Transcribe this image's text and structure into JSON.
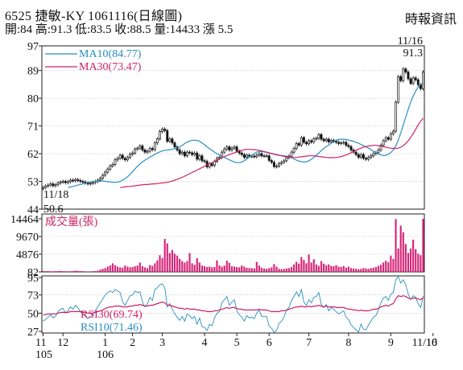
{
  "header": {
    "title": "6525  捷敏-KY 1061116(日線圖)",
    "ohlc": "開:84 高:91.3 低:83.5 收:88.5 量:14433 漲 5.5",
    "source": "時報資訊"
  },
  "chart_data": [
    {
      "type": "candlestick",
      "panel": "price",
      "ylim": [
        44,
        97
      ],
      "yticks": [
        "97",
        "89",
        "80",
        "71",
        "62",
        "53",
        "44"
      ],
      "ytick_values": [
        97,
        89,
        80,
        71,
        62,
        53,
        44
      ],
      "legend": [
        {
          "name": "MA10(84.77)",
          "color": "#2a8fc0"
        },
        {
          "name": "MA30(73.47)",
          "color": "#cc2266"
        }
      ],
      "annotations": {
        "high": {
          "date": "11/16",
          "value": "91.3"
        },
        "low": {
          "date": "11/18",
          "value": "50.6"
        }
      },
      "close_series": [
        51,
        51.5,
        51.8,
        52.2,
        51.6,
        51.9,
        52.5,
        52.8,
        53,
        52.6,
        52.9,
        53.4,
        53.2,
        53.6,
        53.3,
        53,
        52.8,
        52.5,
        52.2,
        52.4,
        52.6,
        53,
        53.4,
        54,
        55,
        56,
        57,
        58,
        58.5,
        60,
        60.5,
        61.5,
        60.5,
        60,
        60.8,
        61.8,
        62.2,
        63.5,
        63.8,
        64.5,
        63.2,
        62.5,
        62.8,
        63.7,
        63.3,
        65.5,
        66.8,
        69.2,
        70,
        69.5,
        66,
        66.8,
        65.5,
        64.2,
        63.2,
        62,
        62.5,
        61.3,
        62.5,
        62.3,
        61.7,
        62.2,
        60.2,
        61.3,
        59.7,
        59.5,
        57.7,
        58.7,
        58.2,
        59.5,
        60.5,
        60.8,
        62.5,
        63.5,
        64.2,
        63.2,
        63.8,
        64.2,
        62.8,
        62.2,
        61.7,
        60.8,
        61.5,
        61.2,
        61.2,
        61,
        61.5,
        62,
        61.3,
        61.3,
        61.3,
        59.8,
        59.2,
        57.8,
        58,
        58.8,
        59.2,
        59.7,
        60.7,
        61.2,
        62.5,
        63.7,
        65.3,
        64.8,
        67.2,
        65.7,
        65.2,
        66.2,
        65.8,
        66.8,
        67,
        68.2,
        66.7,
        66.2,
        66.7,
        65.8,
        66.3,
        66,
        65.7,
        65.3,
        65.5,
        65.7,
        64.7,
        64.3,
        63.2,
        62.5,
        61.7,
        60.8,
        61.7,
        60.5,
        60.2,
        60.8,
        61.3,
        62,
        62.3,
        63.2,
        64.7,
        66.2,
        67.2,
        66.7,
        68.5,
        69.3,
        78.7,
        87,
        85.7,
        89.5,
        88.5,
        86.3,
        84.8,
        86.6,
        86,
        84.4,
        83.1,
        88.5
      ],
      "ma10_series": [
        51,
        51.2,
        51.4,
        51.6,
        51.8,
        52,
        52.2,
        52.4,
        52.6,
        52.8,
        52.9,
        53,
        53,
        53.1,
        53.1,
        53,
        52.9,
        52.8,
        52.7,
        52.7,
        52.8,
        53,
        53.4,
        53.9,
        54.5,
        55.3,
        56.1,
        57.1,
        57.9,
        58.7,
        59.3,
        59.9,
        60.4,
        60.9,
        61.3,
        61.8,
        62.2,
        62.6,
        62.9,
        63.1,
        63.2,
        63.3,
        63.4,
        63.6,
        63.8,
        64.2,
        64.7,
        65.3,
        65.8,
        66.1,
        66.3,
        66.4,
        66.3,
        66,
        65.5,
        64.9,
        64.2,
        63.6,
        63.1,
        62.5,
        62,
        61.6,
        61.2,
        60.8,
        60.4,
        60,
        59.6,
        59.3,
        59.1,
        59.1,
        59.3,
        59.7,
        60.3,
        60.9,
        61.5,
        62,
        62.5,
        62.7,
        62.7,
        62.6,
        62.4,
        62.2,
        62,
        61.8,
        61.6,
        61.5,
        61.4,
        61.3,
        61.2,
        61,
        60.7,
        60.3,
        59.9,
        59.6,
        59.4,
        59.3,
        59.4,
        59.7,
        60.2,
        60.8,
        61.5,
        62.2,
        63,
        63.7,
        64.3,
        64.8,
        65.4,
        65.9,
        66.3,
        66.6,
        66.7,
        66.7,
        66.6,
        66.4,
        66.2,
        66,
        65.7,
        65.4,
        65,
        64.6,
        64.2,
        63.8,
        63.3,
        62.8,
        62.3,
        61.9,
        61.6,
        61.4,
        61.5,
        61.8,
        62.4,
        63.2,
        64.5,
        66.4,
        68.7,
        71.3,
        73.9,
        76.4,
        78.7,
        80.7,
        82.3,
        83.6,
        84.5,
        84.77
      ],
      "ma30_series": [
        51,
        51.1,
        51.2,
        51.3,
        51.4,
        51.5,
        51.6,
        51.7,
        51.8,
        51.9,
        52,
        52,
        52.1,
        52.2,
        52.2,
        52.3,
        52.4,
        52.5,
        52.6,
        52.7,
        52.9,
        53.1,
        53.4,
        53.7,
        54,
        54.3,
        54.7,
        55.1,
        55.5,
        55.9,
        56.3,
        56.7,
        57.1,
        57.5,
        57.9,
        58.3,
        58.7,
        59.1,
        59.5,
        59.9,
        60.3,
        60.7,
        61.1,
        61.4,
        61.7,
        62,
        62.3,
        62.6,
        62.9,
        63.1,
        63.3,
        63.4,
        63.4,
        63.4,
        63.3,
        63.2,
        63.1,
        62.9,
        62.7,
        62.5,
        62.3,
        62.1,
        61.9,
        61.7,
        61.5,
        61.3,
        61.1,
        61,
        60.9,
        60.8,
        60.8,
        60.8,
        60.9,
        61,
        61.1,
        61.2,
        61.3,
        61.3,
        61.3,
        61.2,
        61.1,
        61,
        60.9,
        60.8,
        60.7,
        60.7,
        60.7,
        60.8,
        60.9,
        61.1,
        61.3,
        61.6,
        61.9,
        62.3,
        62.7,
        63.1,
        63.5,
        63.8,
        64.1,
        64.3,
        64.5,
        64.6,
        64.7,
        64.7,
        64.6,
        64.5,
        64.3,
        64.1,
        63.9,
        63.8,
        63.7,
        63.7,
        63.8,
        64.1,
        64.6,
        65.3,
        66.2,
        67.3,
        68.5,
        69.9,
        71.3,
        72.5,
        73.47
      ]
    },
    {
      "type": "bar",
      "panel": "volume",
      "label": "成交量(張)",
      "ylim": [
        82,
        14464
      ],
      "yticks": [
        "14464",
        "9670",
        "4876",
        "82"
      ],
      "ytick_values": [
        14464,
        9670,
        4876,
        82
      ],
      "volume_series": [
        320,
        280,
        300,
        260,
        250,
        280,
        300,
        350,
        280,
        260,
        240,
        260,
        300,
        420,
        380,
        300,
        260,
        240,
        220,
        240,
        260,
        300,
        420,
        700,
        900,
        1100,
        1500,
        1800,
        2400,
        1900,
        1500,
        1300,
        1200,
        1800,
        1500,
        1300,
        1400,
        1600,
        1800,
        2600,
        1600,
        1300,
        1100,
        1900,
        1700,
        2400,
        3200,
        4600,
        3800,
        9000,
        7800,
        5200,
        6000,
        5000,
        4500,
        3600,
        3000,
        2600,
        3000,
        5200,
        2400,
        2000,
        3800,
        2600,
        1800,
        1600,
        1400,
        1500,
        1300,
        1400,
        3200,
        1800,
        1500,
        1800,
        3100,
        2500,
        1600,
        1500,
        1400,
        1300,
        1800,
        1500,
        1200,
        1100,
        1100,
        1000,
        2800,
        1800,
        1200,
        1000,
        900,
        1100,
        1300,
        2200,
        1500,
        900,
        800,
        900,
        1000,
        1100,
        1400,
        2100,
        2800,
        2300,
        4100,
        3300,
        2400,
        4800,
        2600,
        3500,
        2100,
        1700,
        3000,
        2300,
        1900,
        2100,
        1700,
        1600,
        1900,
        1500,
        1400,
        1700,
        1200,
        1500,
        1100,
        1000,
        900,
        800,
        900,
        1100,
        1000,
        900,
        1100,
        1200,
        1400,
        1700,
        2000,
        2600,
        3100,
        2700,
        4500,
        3600,
        14400,
        6400,
        12600,
        10800,
        7600,
        5200,
        6400,
        8800,
        6200,
        5000,
        4600,
        14433
      ]
    },
    {
      "type": "line",
      "panel": "rsi",
      "ylim": [
        27,
        95
      ],
      "yticks": [
        "95",
        "73",
        "50",
        "27"
      ],
      "ytick_values": [
        95,
        73,
        50,
        27
      ],
      "legend": [
        {
          "name": "RSI30(69.74)",
          "color": "#cc2266"
        },
        {
          "name": "RSI10(71.46)",
          "color": "#2a8fc0"
        }
      ],
      "rsi10_series": [
        40,
        42,
        45,
        48,
        44,
        46,
        52,
        55,
        56,
        50,
        53,
        58,
        55,
        60,
        57,
        52,
        49,
        46,
        43,
        45,
        48,
        53,
        58,
        63,
        68,
        73,
        76,
        78,
        76,
        80,
        78,
        76,
        64,
        60,
        66,
        72,
        73,
        78,
        76,
        77,
        64,
        58,
        62,
        70,
        66,
        80,
        82,
        86,
        87,
        82,
        58,
        62,
        55,
        49,
        45,
        41,
        46,
        40,
        49,
        47,
        43,
        46,
        36,
        44,
        33,
        32,
        28,
        36,
        34,
        44,
        50,
        52,
        63,
        67,
        71,
        60,
        64,
        67,
        53,
        48,
        45,
        40,
        47,
        44,
        45,
        43,
        50,
        54,
        46,
        46,
        46,
        34,
        31,
        26,
        28,
        37,
        40,
        45,
        54,
        57,
        66,
        71,
        77,
        71,
        80,
        64,
        60,
        67,
        63,
        70,
        71,
        76,
        61,
        57,
        61,
        53,
        57,
        55,
        52,
        49,
        51,
        53,
        45,
        42,
        35,
        32,
        29,
        26,
        36,
        30,
        29,
        35,
        40,
        45,
        47,
        54,
        63,
        69,
        71,
        66,
        74,
        76,
        92,
        96,
        88,
        92,
        86,
        74,
        67,
        72,
        70,
        62,
        57,
        71.46
      ],
      "rsi30_series": [
        48,
        48,
        49,
        49,
        49,
        49,
        50,
        51,
        51,
        51,
        51,
        52,
        52,
        52,
        52,
        52,
        51,
        51,
        50,
        50,
        50,
        51,
        52,
        53,
        54,
        56,
        57,
        58,
        58,
        59,
        59,
        59,
        58,
        58,
        58,
        59,
        59,
        60,
        60,
        61,
        60,
        59,
        59,
        60,
        60,
        61,
        62,
        63,
        64,
        63,
        60,
        60,
        59,
        58,
        57,
        56,
        56,
        55,
        56,
        55,
        55,
        55,
        54,
        54,
        53,
        53,
        52,
        52,
        52,
        53,
        53,
        54,
        55,
        56,
        57,
        56,
        57,
        57,
        56,
        55,
        55,
        54,
        54,
        54,
        54,
        54,
        54,
        55,
        54,
        54,
        54,
        53,
        52,
        52,
        52,
        52,
        53,
        53,
        54,
        55,
        56,
        57,
        58,
        58,
        59,
        58,
        58,
        59,
        58,
        59,
        59,
        60,
        59,
        58,
        59,
        58,
        58,
        58,
        57,
        57,
        57,
        57,
        56,
        55,
        55,
        54,
        54,
        53,
        54,
        53,
        53,
        53,
        54,
        55,
        55,
        56,
        58,
        59,
        60,
        59,
        61,
        62,
        68,
        72,
        71,
        72,
        71,
        69,
        68,
        69,
        69,
        68,
        67,
        69.74
      ]
    }
  ],
  "x_axis": {
    "ticks": [
      {
        "label": "11",
        "sub": "105",
        "index": 0
      },
      {
        "label": "12",
        "sub": "",
        "index": 8
      },
      {
        "label": "1",
        "sub": "106",
        "index": 25
      },
      {
        "label": "2",
        "sub": "",
        "index": 36
      },
      {
        "label": "3",
        "sub": "",
        "index": 48
      },
      {
        "label": "4",
        "sub": "",
        "index": 65
      },
      {
        "label": "5",
        "sub": "",
        "index": 78
      },
      {
        "label": "6",
        "sub": "",
        "index": 91
      },
      {
        "label": "7",
        "sub": "",
        "index": 107
      },
      {
        "label": "8",
        "sub": "",
        "index": 123
      },
      {
        "label": "9",
        "sub": "",
        "index": 140
      },
      {
        "label": "10",
        "sub": "",
        "index": 157
      },
      {
        "label": "11/16",
        "sub": "",
        "index": 175
      }
    ]
  }
}
